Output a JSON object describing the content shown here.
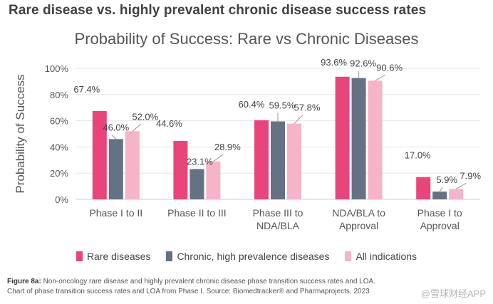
{
  "heading": "Rare disease vs. highly prevalent chronic disease success rates",
  "colors": {
    "rare": "#e8457a",
    "chronic": "#647283",
    "all": "#f7b3c7",
    "grid": "#e6e6e6"
  },
  "chart_data": {
    "type": "bar",
    "title": "Probability of Success: Rare vs Chronic Diseases",
    "ylabel": "Probability of Success",
    "xlabel": "",
    "ylim": [
      0,
      100
    ],
    "yticks": [
      "0%",
      "20%",
      "40%",
      "60%",
      "80%",
      "100%"
    ],
    "categories": [
      [
        "Phase I to II"
      ],
      [
        "Phase II to III"
      ],
      [
        "Phase III to",
        "NDA/BLA"
      ],
      [
        "NDA/BLA to",
        "Approval"
      ],
      [
        "Phase I to",
        "Approval"
      ]
    ],
    "series": [
      {
        "name": "Rare diseases",
        "values": [
          67.4,
          44.6,
          60.4,
          93.6,
          17.0
        ],
        "labels": [
          "67.4%",
          "44.6%",
          "60.4%",
          "93.6%",
          "17.0%"
        ]
      },
      {
        "name": "Chronic, high prevalence diseases",
        "values": [
          46.0,
          23.1,
          59.5,
          92.6,
          5.9
        ],
        "labels": [
          "46.0%",
          "23.1%",
          "59.5%",
          "92.6%",
          "5.9%"
        ]
      },
      {
        "name": "All indications",
        "values": [
          52.0,
          28.9,
          57.8,
          90.6,
          7.9
        ],
        "labels": [
          "52.0%",
          "28.9%",
          "57.8%",
          "90.6%",
          "7.9%"
        ]
      }
    ],
    "legend": "bottom"
  },
  "legend": {
    "rare": "Rare diseases",
    "chronic": "Chronic, high prevalence diseases",
    "all": "All indications"
  },
  "caption": {
    "label": "Figure 8a:",
    "line1": "Non-oncology rare disease and highly prevalent chronic disease phase transition success rates and LOA.",
    "line2": "Chart of phase transition success rates and LOA from Phase I. Source: Biomedtracker® and Pharmaprojects, 2023"
  },
  "watermark": "@雪球财经APP"
}
